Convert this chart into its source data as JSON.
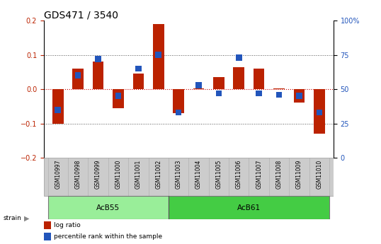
{
  "title": "GDS471 / 3540",
  "samples": [
    "GSM10997",
    "GSM10998",
    "GSM10999",
    "GSM11000",
    "GSM11001",
    "GSM11002",
    "GSM11003",
    "GSM11004",
    "GSM11005",
    "GSM11006",
    "GSM11007",
    "GSM11008",
    "GSM11009",
    "GSM11010"
  ],
  "log_ratio": [
    -0.1,
    0.06,
    0.08,
    -0.055,
    0.045,
    0.19,
    -0.07,
    0.002,
    0.035,
    0.065,
    0.06,
    0.002,
    -0.04,
    -0.13
  ],
  "percentile_rank_pct": [
    35,
    60,
    72,
    45,
    65,
    75,
    33,
    53,
    47,
    73,
    47,
    46,
    45,
    33
  ],
  "strain_groups": [
    {
      "label": "AcB55",
      "start": 0,
      "end": 6,
      "color": "#99ee99"
    },
    {
      "label": "AcB61",
      "start": 6,
      "end": 14,
      "color": "#44cc44"
    }
  ],
  "ylim": [
    -0.2,
    0.2
  ],
  "yticks_left": [
    -0.2,
    -0.1,
    0.0,
    0.1,
    0.2
  ],
  "yticks_right_pct": [
    0,
    25,
    50,
    75,
    100
  ],
  "bar_width": 0.55,
  "blue_bar_width": 0.3,
  "log_ratio_color": "#bb2200",
  "percentile_color": "#2255bb",
  "zero_line_color": "#cc0000",
  "dotted_line_color": "#555555",
  "bg_color": "#ffffff",
  "title_fontsize": 10,
  "tick_fontsize": 7,
  "label_fontsize": 5.5,
  "strain_fontsize": 7.5
}
